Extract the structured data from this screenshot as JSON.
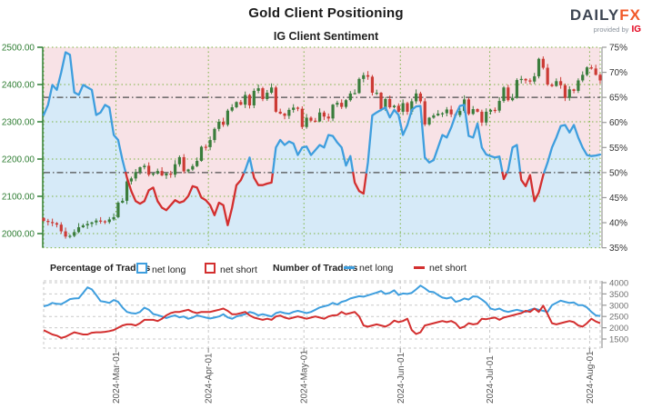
{
  "header": {
    "title": "Gold Client Positioning",
    "subtitle": "IG Client Sentiment",
    "logo": {
      "brand_daily": "DAILY",
      "brand_fx": "FX",
      "provided_by": "provided by",
      "provider": "IG"
    }
  },
  "legend": {
    "percentage_group": "Percentage of Traders",
    "number_group": "Number of Traders",
    "pct_net_long": "net long",
    "pct_net_short": "net short",
    "num_net_long": "net long",
    "num_net_short": "net short"
  },
  "colors": {
    "bull_candle": "#3a7d3c",
    "bear_candle": "#cc3b35",
    "long_line": "#3e9ede",
    "short_line": "#d32f2f",
    "long_fill": "#d6eaf8",
    "short_fill": "#f8e2e6",
    "green_axis": "#2e7d32",
    "green_grid": "#7cb342",
    "gray_axis": "#999999",
    "gray_grid": "#c9c9c9",
    "ref_line": "#4d4d4d",
    "count_label": "#707070",
    "date_label": "#555555"
  },
  "chart_data": [
    {
      "type": "candlestick_with_sentiment_area",
      "title": "IG Client Sentiment",
      "price_axis": {
        "side": "left",
        "ticks": [
          {
            "label": "2500.00",
            "value": 2500
          },
          {
            "label": "2400.00",
            "value": 2400
          },
          {
            "label": "2300.00",
            "value": 2300
          },
          {
            "label": "2200.00",
            "value": 2200
          },
          {
            "label": "2100.00",
            "value": 2100
          },
          {
            "label": "2000.00",
            "value": 2000
          }
        ]
      },
      "pct_axis": {
        "side": "right",
        "min": 35,
        "max": 75,
        "ticks": [
          {
            "label": "75%",
            "value": 75
          },
          {
            "label": "70%",
            "value": 70
          },
          {
            "label": "65%",
            "value": 65
          },
          {
            "label": "60%",
            "value": 60
          },
          {
            "label": "55%",
            "value": 55
          },
          {
            "label": "50%",
            "value": 50
          },
          {
            "label": "45%",
            "value": 45
          },
          {
            "label": "40%",
            "value": 40
          },
          {
            "label": "35%",
            "value": 35
          }
        ]
      },
      "x_axis": {
        "months": [
          {
            "label": "2024-Mar-01",
            "day": 16.5
          },
          {
            "label": "2024-Apr-01",
            "day": 37.6
          },
          {
            "label": "2024-May-01",
            "day": 59.4
          },
          {
            "label": "2024-Jun-01",
            "day": 81.4
          },
          {
            "label": "2024-Jul-01",
            "day": 101.8
          },
          {
            "label": "2024-Aug-01",
            "day": 124.6
          }
        ]
      },
      "reference_pct_lines": [
        65,
        50
      ],
      "gold_daily_closes": [
        2034,
        2031,
        2028,
        2024,
        2006,
        1992,
        1994,
        2004,
        2017,
        2022,
        2026,
        2030,
        2035,
        2033,
        2031,
        2038,
        2044,
        2083,
        2088,
        2140,
        2148,
        2165,
        2178,
        2182,
        2158,
        2161,
        2168,
        2156,
        2161,
        2158,
        2186,
        2205,
        2167,
        2172,
        2181,
        2195,
        2233,
        2232,
        2251,
        2281,
        2300,
        2292,
        2330,
        2339,
        2353,
        2346,
        2372,
        2344,
        2383,
        2390,
        2361,
        2378,
        2392,
        2327,
        2322,
        2316,
        2332,
        2338,
        2335,
        2286,
        2311,
        2303,
        2301,
        2325,
        2314,
        2309,
        2346,
        2351,
        2340,
        2358,
        2376,
        2377,
        2415,
        2425,
        2421,
        2378,
        2378,
        2334,
        2361,
        2339,
        2343,
        2327,
        2350,
        2327,
        2355,
        2376,
        2355,
        2293,
        2311,
        2317,
        2322,
        2323,
        2333,
        2320,
        2318,
        2329,
        2360,
        2321,
        2334,
        2327,
        2298,
        2327,
        2332,
        2330,
        2356,
        2392,
        2358,
        2364,
        2412,
        2415,
        2411,
        2408,
        2422,
        2469,
        2445,
        2400,
        2396,
        2409,
        2398,
        2364,
        2387,
        2383,
        2411,
        2426,
        2446,
        2443,
        2426,
        2411
      ],
      "net_long_pct": [
        61.5,
        63.5,
        67.5,
        66.5,
        70,
        74,
        73.5,
        66,
        65.5,
        67.5,
        67,
        66.5,
        61.5,
        62,
        63.5,
        63,
        57.5,
        56.5,
        52.5,
        49,
        46.3,
        44.3,
        43.8,
        44.3,
        46.5,
        47,
        44.3,
        43,
        42.5,
        43.5,
        44.5,
        44,
        44.3,
        45.3,
        47.3,
        47,
        45,
        44.5,
        43.5,
        41.5,
        44,
        43.5,
        39.5,
        43,
        47.5,
        48.5,
        50.5,
        53,
        49,
        47.5,
        47.5,
        47.8,
        48,
        55,
        56.5,
        55.5,
        56.2,
        55.8,
        53.5,
        55,
        55.2,
        53.5,
        54.5,
        55.5,
        55,
        57.5,
        57.3,
        56,
        55,
        51.4,
        53.3,
        48,
        46.3,
        45.8,
        52,
        61.4,
        62,
        62.5,
        63,
        61,
        62.5,
        61.5,
        57.5,
        59.5,
        62.5,
        63.2,
        63.3,
        53,
        52,
        52.5,
        55,
        57.5,
        57,
        59,
        61.5,
        63.3,
        63.5,
        57.3,
        57,
        59.8,
        55,
        53.6,
        53.3,
        53,
        53.2,
        48.7,
        50.5,
        55,
        55.5,
        48.5,
        47.3,
        49.5,
        44.3,
        46,
        49.5,
        52,
        55,
        57,
        59.3,
        59.5,
        58,
        59.5,
        57,
        55,
        53.5,
        53.3,
        53.4,
        53.6
      ]
    },
    {
      "type": "line",
      "title": "Number of Traders",
      "count_axis": {
        "side": "right",
        "min": 1500,
        "max": 4000,
        "ticks": [
          {
            "label": "4000",
            "value": 4000
          },
          {
            "label": "3500",
            "value": 3500
          },
          {
            "label": "3000",
            "value": 3000
          },
          {
            "label": "2500",
            "value": 2500
          },
          {
            "label": "2000",
            "value": 2000
          },
          {
            "label": "1500",
            "value": 1500
          }
        ]
      },
      "series": [
        {
          "name": "net long",
          "values": [
            2950,
            3000,
            3100,
            3060,
            3050,
            3150,
            3270,
            3300,
            3310,
            3550,
            3790,
            3700,
            3450,
            3180,
            3150,
            3100,
            3230,
            3150,
            2900,
            2700,
            2650,
            2630,
            2700,
            2890,
            2800,
            2610,
            2560,
            2500,
            2430,
            2500,
            2550,
            2460,
            2500,
            2400,
            2450,
            2550,
            2500,
            2450,
            2410,
            2450,
            2500,
            2600,
            2460,
            2400,
            2500,
            2550,
            2600,
            2700,
            2650,
            2550,
            2600,
            2550,
            2500,
            2650,
            2700,
            2650,
            2620,
            2700,
            2750,
            2700,
            2650,
            2700,
            2800,
            2900,
            2950,
            3000,
            3100,
            3030,
            3150,
            3200,
            3300,
            3350,
            3400,
            3380,
            3440,
            3500,
            3560,
            3630,
            3500,
            3550,
            3660,
            3450,
            3520,
            3500,
            3550,
            3700,
            3870,
            3750,
            3600,
            3580,
            3450,
            3340,
            3300,
            3350,
            3150,
            3200,
            3300,
            3250,
            3390,
            3380,
            3250,
            3100,
            2850,
            2800,
            2850,
            2750,
            2700,
            2750,
            2800,
            2750,
            2700,
            2800,
            2850,
            2800,
            2750,
            2700,
            3000,
            3100,
            3200,
            3150,
            3100,
            3120,
            3000,
            3000,
            2900,
            2700,
            2550,
            2520
          ]
        },
        {
          "name": "net short",
          "values": [
            1890,
            1800,
            1700,
            1650,
            1550,
            1600,
            1700,
            1800,
            1750,
            1700,
            1700,
            1780,
            1800,
            1800,
            1820,
            1850,
            1900,
            2000,
            2100,
            2150,
            2150,
            2100,
            2200,
            2350,
            2350,
            2350,
            2300,
            2400,
            2550,
            2650,
            2700,
            2700,
            2750,
            2800,
            2700,
            2650,
            2700,
            2700,
            2700,
            2750,
            2800,
            2850,
            2750,
            2600,
            2600,
            2650,
            2700,
            2550,
            2450,
            2400,
            2350,
            2400,
            2350,
            2500,
            2540,
            2450,
            2400,
            2450,
            2500,
            2450,
            2400,
            2450,
            2500,
            2450,
            2400,
            2500,
            2550,
            2560,
            2700,
            2600,
            2650,
            2700,
            2500,
            2100,
            2050,
            2100,
            2150,
            2100,
            2050,
            2150,
            2320,
            2250,
            2300,
            2400,
            1900,
            1720,
            1800,
            2100,
            2150,
            2200,
            2250,
            2300,
            2250,
            2300,
            2200,
            1980,
            2050,
            2200,
            2150,
            2180,
            2400,
            2380,
            2420,
            2450,
            2350,
            2450,
            2500,
            2550,
            2600,
            2650,
            2750,
            2700,
            2850,
            2700,
            2980,
            2600,
            2200,
            2150,
            2200,
            2250,
            2300,
            2250,
            2100,
            2050,
            2200,
            2400,
            2280,
            2200
          ]
        }
      ]
    }
  ]
}
